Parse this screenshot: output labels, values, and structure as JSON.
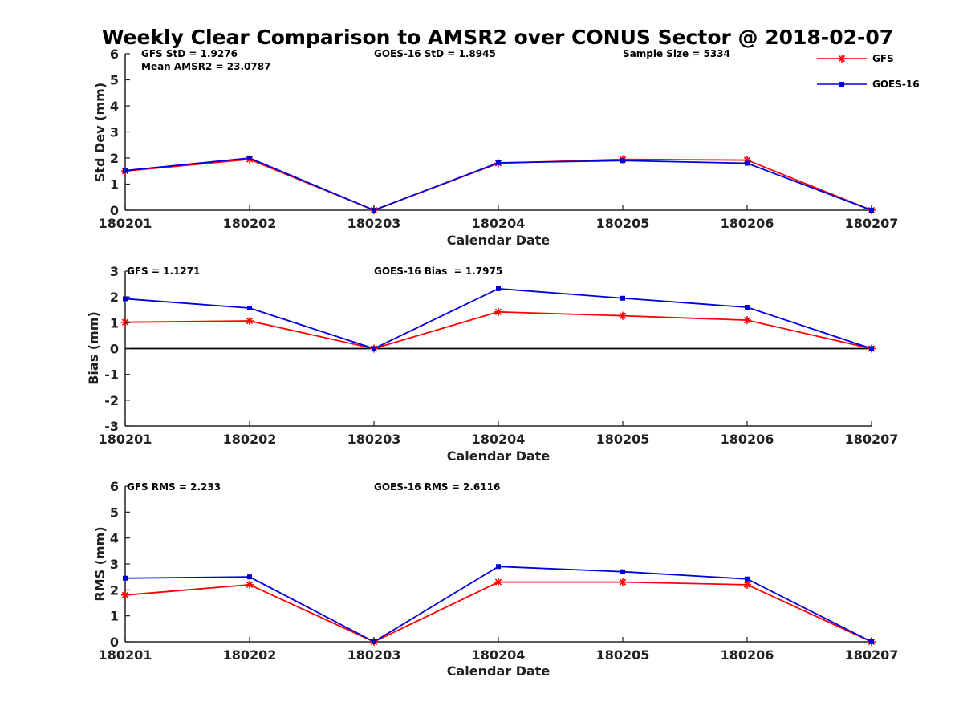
{
  "title": "Weekly Clear Comparison to AMSR2 over CONUS Sector @ 2018-02-07",
  "colors": {
    "GFS": "#ff0000",
    "GOES-16": "#0000dd",
    "axis": "#222222"
  },
  "legend": {
    "placement": "top-right",
    "entries": [
      {
        "name": "GFS",
        "marker": "asterisk",
        "color": "#ff0000"
      },
      {
        "name": "GOES-16",
        "marker": "square",
        "color": "#0000dd"
      }
    ]
  },
  "chart_data": [
    {
      "type": "line",
      "xlabel": "Calendar Date",
      "ylabel": "Std Dev (mm)",
      "categories": [
        "180201",
        "180202",
        "180203",
        "180204",
        "180205",
        "180206",
        "180207"
      ],
      "ylim": [
        0,
        6
      ],
      "yticks": [
        "0",
        "1",
        "2",
        "3",
        "4",
        "5",
        "6"
      ],
      "zero_line": false,
      "series": [
        {
          "name": "GFS",
          "values": [
            1.5,
            1.95,
            0.0,
            1.8,
            1.95,
            1.92,
            0.0
          ]
        },
        {
          "name": "GOES-16",
          "values": [
            1.52,
            2.0,
            0.0,
            1.82,
            1.9,
            1.8,
            0.0
          ]
        }
      ],
      "annotations": [
        "GFS StD = 1.9276",
        "Mean AMSR2 = 23.0787",
        "GOES-16 StD = 1.8945",
        "Sample Size = 5334"
      ]
    },
    {
      "type": "line",
      "xlabel": "Calendar Date",
      "ylabel": "Bias (mm)",
      "categories": [
        "180201",
        "180202",
        "180203",
        "180204",
        "180205",
        "180206",
        "180207"
      ],
      "ylim": [
        -3,
        3
      ],
      "yticks": [
        "-3",
        "-2",
        "-1",
        "0",
        "1",
        "2",
        "3"
      ],
      "zero_line": true,
      "series": [
        {
          "name": "GFS",
          "values": [
            1.02,
            1.07,
            0.0,
            1.42,
            1.27,
            1.1,
            0.0
          ]
        },
        {
          "name": "GOES-16",
          "values": [
            1.93,
            1.57,
            0.0,
            2.32,
            1.95,
            1.6,
            0.0
          ]
        }
      ],
      "annotations": [
        "GFS = 1.1271",
        "GOES-16 Bias  = 1.7975"
      ]
    },
    {
      "type": "line",
      "xlabel": "Calendar Date",
      "ylabel": "RMS (mm)",
      "categories": [
        "180201",
        "180202",
        "180203",
        "180204",
        "180205",
        "180206",
        "180207"
      ],
      "ylim": [
        0,
        6
      ],
      "yticks": [
        "0",
        "1",
        "2",
        "3",
        "4",
        "5",
        "6"
      ],
      "zero_line": false,
      "series": [
        {
          "name": "GFS",
          "values": [
            1.8,
            2.2,
            0.0,
            2.3,
            2.3,
            2.2,
            0.0
          ]
        },
        {
          "name": "GOES-16",
          "values": [
            2.45,
            2.5,
            0.0,
            2.9,
            2.7,
            2.42,
            0.0
          ]
        }
      ],
      "annotations": [
        "GFS RMS = 2.233",
        "GOES-16 RMS = 2.6116"
      ]
    }
  ]
}
